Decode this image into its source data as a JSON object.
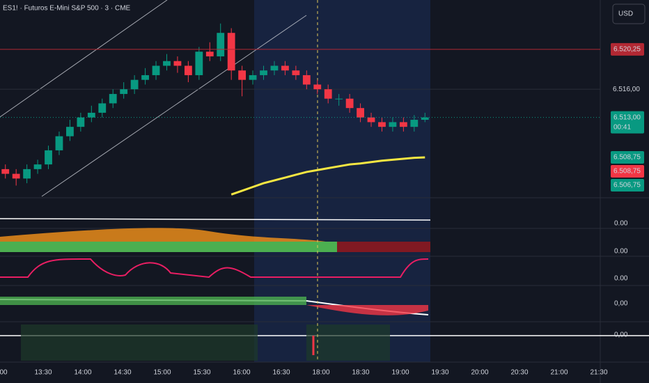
{
  "chart_data": {
    "type": "candlestick",
    "title": "ES1! · Futuros E-Mini S&P 500 · 3 · CME",
    "currency": "USD",
    "up_color": "#089981",
    "down_color": "#f23645",
    "open": [
      6507.5,
      6507.0,
      6506.5,
      6507.5,
      6508.0,
      6509.5,
      6511.0,
      6512.0,
      6513.0,
      6513.5,
      6514.5,
      6515.5,
      6516.0,
      6517.0,
      6517.5,
      6518.5,
      6519.0,
      6518.5,
      6517.5,
      6520.0,
      6519.5,
      6522.0,
      6518.0,
      6517.0,
      6517.5,
      6518.0,
      6518.5,
      6518.0,
      6517.5,
      6516.5,
      6516.0,
      6515.0,
      6515.0,
      6514.0,
      6513.0,
      6512.5,
      6512.0,
      6512.5,
      6512.0,
      6512.75
    ],
    "high": [
      6508.0,
      6507.5,
      6508.0,
      6508.5,
      6510.0,
      6511.5,
      6512.75,
      6513.5,
      6514.25,
      6515.0,
      6516.0,
      6516.75,
      6517.5,
      6518.25,
      6519.0,
      6519.75,
      6519.5,
      6519.0,
      6520.5,
      6521.0,
      6523.0,
      6522.5,
      6518.5,
      6518.0,
      6518.5,
      6519.0,
      6519.0,
      6518.5,
      6518.0,
      6517.0,
      6516.5,
      6515.5,
      6515.5,
      6514.5,
      6513.5,
      6513.0,
      6513.0,
      6513.0,
      6513.25,
      6513.5
    ],
    "low": [
      6506.5,
      6505.75,
      6506.0,
      6507.0,
      6507.5,
      6509.0,
      6510.5,
      6511.5,
      6512.5,
      6513.0,
      6514.0,
      6515.0,
      6515.5,
      6516.5,
      6517.0,
      6518.0,
      6517.75,
      6516.75,
      6517.0,
      6519.0,
      6519.0,
      6517.0,
      6515.25,
      6516.5,
      6517.0,
      6517.5,
      6517.5,
      6517.0,
      6516.0,
      6515.5,
      6514.5,
      6514.25,
      6513.5,
      6512.5,
      6512.0,
      6511.5,
      6511.5,
      6511.5,
      6511.5,
      6512.5
    ],
    "close": [
      6507.0,
      6506.5,
      6507.5,
      6508.0,
      6509.5,
      6511.0,
      6512.0,
      6513.0,
      6513.5,
      6514.5,
      6515.5,
      6516.0,
      6517.0,
      6517.5,
      6518.5,
      6519.0,
      6518.5,
      6517.5,
      6520.0,
      6519.5,
      6522.0,
      6518.0,
      6517.0,
      6517.5,
      6518.0,
      6518.5,
      6518.0,
      6517.5,
      6516.5,
      6516.0,
      6515.0,
      6515.0,
      6514.0,
      6513.0,
      6512.5,
      6512.0,
      6512.5,
      6512.0,
      6512.75,
      6513.0
    ],
    "series": [
      {
        "color": "#f5e642",
        "values": [
          null,
          null,
          null,
          null,
          null,
          null,
          null,
          null,
          null,
          null,
          null,
          null,
          null,
          null,
          null,
          null,
          null,
          null,
          null,
          null,
          null,
          6504.8,
          6505.2,
          6505.6,
          6506.0,
          6506.3,
          6506.6,
          6506.9,
          6507.2,
          6507.4,
          6507.6,
          6507.8,
          6508.0,
          6508.1,
          6508.25,
          6508.4,
          6508.5,
          6508.6,
          6508.7,
          6508.75
        ]
      }
    ],
    "ylim": [
      6504.6,
      6525.5
    ],
    "yticks": [
      {
        "value": 6516,
        "label": "6.516,00"
      }
    ],
    "price_labels": [
      {
        "value": 6520.25,
        "label": "6.520,25",
        "color": "#b22833"
      },
      {
        "value": 6513,
        "label": "6.513,00",
        "color": "#089981"
      },
      {
        "value": 6508.75,
        "label": "6.508,75",
        "color": "#089981"
      },
      {
        "value": 6508.75,
        "label": "6.508,75",
        "color": "#f23645"
      },
      {
        "value": 6506.75,
        "label": "6.506,75",
        "color": "#089981"
      }
    ],
    "countdown": "00:41",
    "xticks": [
      "00",
      "13:30",
      "14:00",
      "14:30",
      "15:00",
      "15:30",
      "16:00",
      "16:30",
      "18:00",
      "18:30",
      "19:00",
      "19:30",
      "20:00",
      "20:30",
      "21:00",
      "21:30"
    ],
    "pane_labels": [
      "0.00",
      "0.00",
      "0.00",
      "0,00",
      "0,00"
    ],
    "grid": true
  }
}
